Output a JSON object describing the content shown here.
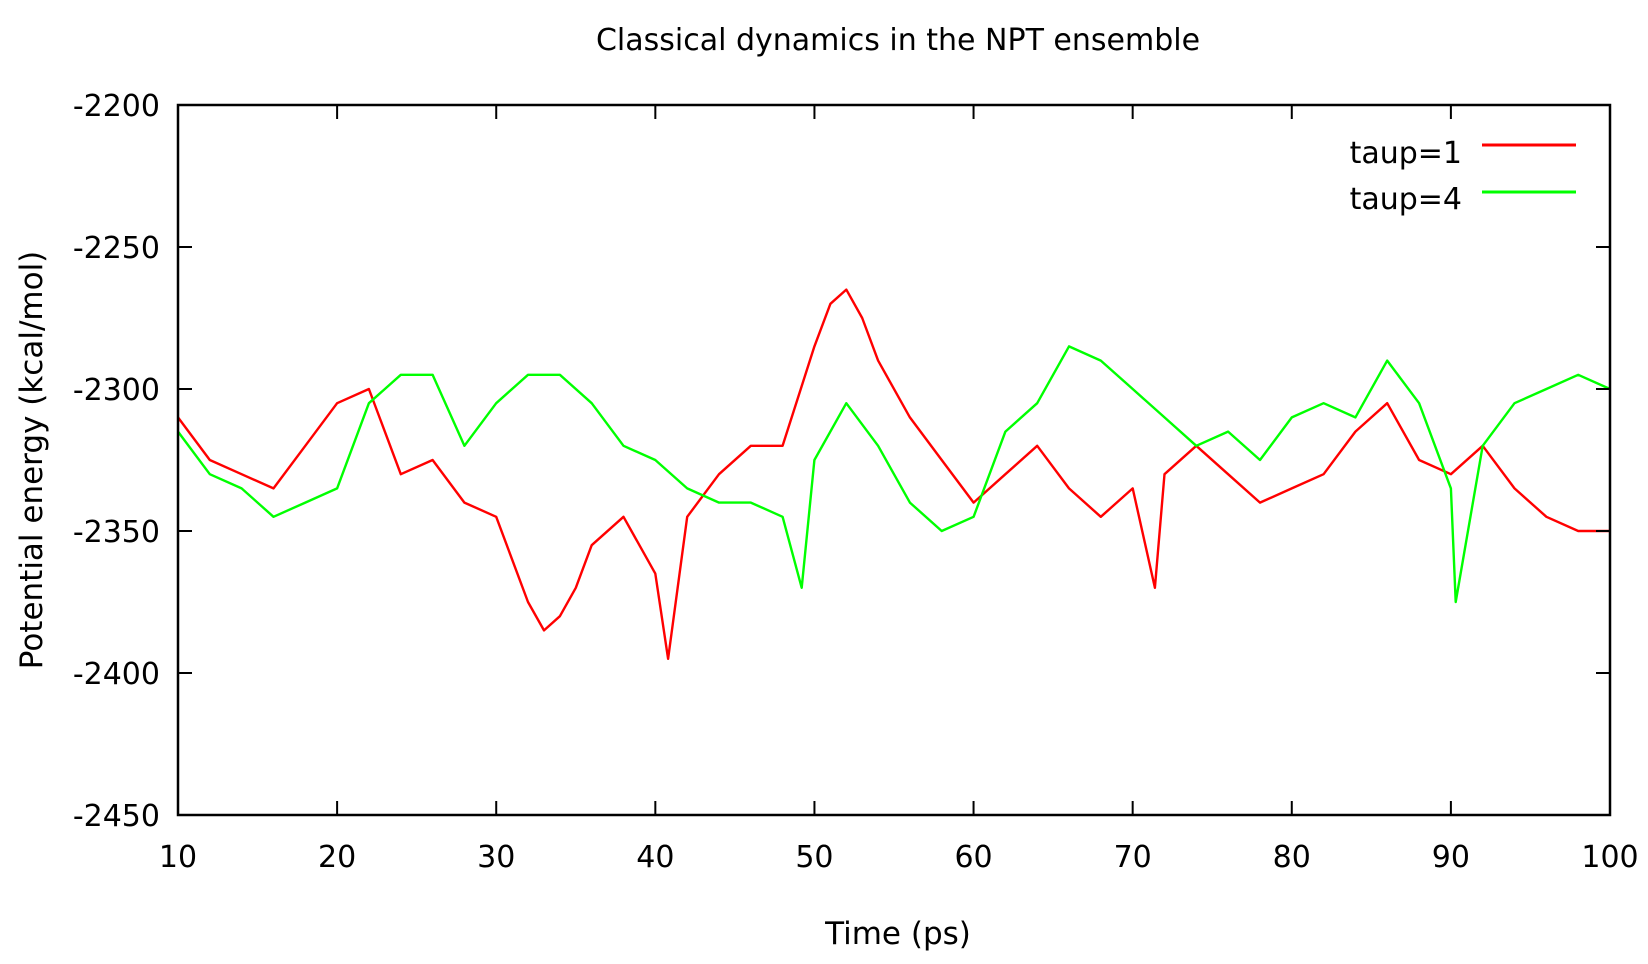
{
  "chart_data": {
    "type": "line",
    "title": "Classical dynamics in the NPT ensemble",
    "xlabel": "Time (ps)",
    "ylabel": "Potential energy (kcal/mol)",
    "xlim": [
      10,
      100
    ],
    "ylim": [
      -2450,
      -2200
    ],
    "x_ticks": [
      10,
      20,
      30,
      40,
      50,
      60,
      70,
      80,
      90,
      100
    ],
    "y_ticks": [
      -2200,
      -2250,
      -2300,
      -2350,
      -2400,
      -2450
    ],
    "x_tick_labels": [
      "10",
      "20",
      "30",
      "40",
      "50",
      "60",
      "70",
      "80",
      "90",
      "100"
    ],
    "y_tick_labels": [
      "-2200",
      "-2250",
      "-2300",
      "-2350",
      "-2400",
      "-2450"
    ],
    "grid": false,
    "legend_position": "top-right",
    "series": [
      {
        "name": "taup=1",
        "color": "#ff0000",
        "x": [
          10,
          12,
          14,
          16,
          18,
          20,
          22,
          24,
          26,
          28,
          30,
          31,
          32,
          33,
          34,
          35,
          36,
          38,
          40,
          40.8,
          42,
          44,
          46,
          48,
          50,
          51,
          52,
          53,
          54,
          56,
          58,
          60,
          62,
          64,
          66,
          68,
          70,
          71.4,
          72,
          74,
          76,
          78,
          80,
          82,
          84,
          86,
          88,
          90,
          92,
          94,
          96,
          98,
          100
        ],
        "y": [
          -2310,
          -2325,
          -2330,
          -2335,
          -2320,
          -2305,
          -2300,
          -2330,
          -2325,
          -2340,
          -2345,
          -2360,
          -2375,
          -2385,
          -2380,
          -2370,
          -2355,
          -2345,
          -2365,
          -2395,
          -2345,
          -2330,
          -2320,
          -2320,
          -2285,
          -2270,
          -2265,
          -2275,
          -2290,
          -2310,
          -2325,
          -2340,
          -2330,
          -2320,
          -2335,
          -2345,
          -2335,
          -2370,
          -2330,
          -2320,
          -2330,
          -2340,
          -2335,
          -2330,
          -2315,
          -2305,
          -2325,
          -2330,
          -2320,
          -2335,
          -2345,
          -2350,
          -2350
        ]
      },
      {
        "name": "taup=4",
        "color": "#00ff00",
        "x": [
          10,
          12,
          14,
          16,
          18,
          20,
          22,
          24,
          26,
          28,
          30,
          32,
          34,
          36,
          38,
          40,
          42,
          44,
          46,
          48,
          49.2,
          50,
          52,
          54,
          56,
          58,
          60,
          62,
          64,
          66,
          68,
          70,
          72,
          74,
          76,
          78,
          80,
          82,
          84,
          86,
          88,
          90,
          90.3,
          92,
          94,
          96,
          98,
          100
        ],
        "y": [
          -2315,
          -2330,
          -2335,
          -2345,
          -2340,
          -2335,
          -2305,
          -2295,
          -2295,
          -2320,
          -2305,
          -2295,
          -2295,
          -2305,
          -2320,
          -2325,
          -2335,
          -2340,
          -2340,
          -2345,
          -2370,
          -2325,
          -2305,
          -2320,
          -2340,
          -2350,
          -2345,
          -2315,
          -2305,
          -2285,
          -2290,
          -2300,
          -2310,
          -2320,
          -2315,
          -2325,
          -2310,
          -2305,
          -2310,
          -2290,
          -2305,
          -2335,
          -2375,
          -2320,
          -2305,
          -2300,
          -2295,
          -2300
        ]
      }
    ]
  }
}
